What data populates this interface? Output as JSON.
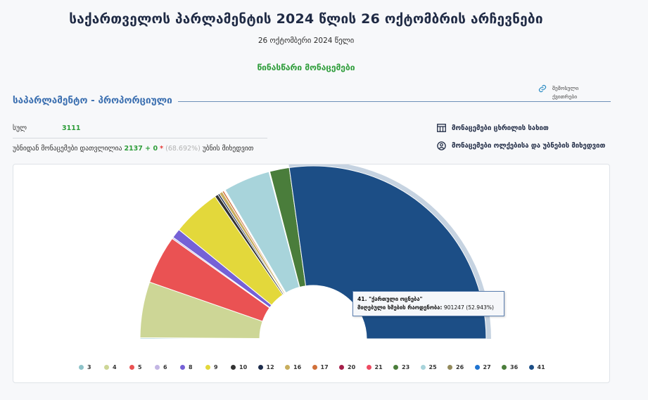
{
  "header": {
    "title": "საქართველოს პარლამენტის 2024 წლის 26 ოქტომბრის არჩევნები",
    "date": "26 ოქტომბერი 2024 წელი",
    "status": "წინასწარი მონაცემები"
  },
  "section": {
    "title": "საპარლამენტო - პროპორციული",
    "share_link": "შემოსული ქვითრები"
  },
  "stats": {
    "total_label": "სულ",
    "total_value": "3111",
    "counted_prefix": "უბნიდან მონაცემები დათვლილია",
    "counted_value": "2137 + 0",
    "counted_star": "*",
    "counted_percent": "(68.692%)",
    "counted_suffix": "უბნის მიხედვით"
  },
  "side_links": {
    "table_view": "მონაცემები ცხრილის სახით",
    "by_district": "მონაცემები ოლქებისა და უბნების მიხედვით"
  },
  "tooltip": {
    "title": "41. \"ქართული ოცნება\"",
    "label": "მიღებული ხმების რაოდენობა:",
    "value": "901247 (52.943%)"
  },
  "chart_data": {
    "type": "pie",
    "subtype": "semi-donut",
    "highlighted": "41",
    "slices": [
      {
        "name": "3",
        "percent": 0.2,
        "color": "#8ec3c9"
      },
      {
        "name": "4",
        "percent": 10.16,
        "color": "#cdd696"
      },
      {
        "name": "5",
        "percent": 8.81,
        "color": "#ea5253"
      },
      {
        "name": "6",
        "percent": 0.27,
        "color": "#c3b6e4"
      },
      {
        "name": "8",
        "percent": 1.73,
        "color": "#7561d6"
      },
      {
        "name": "9",
        "percent": 8.81,
        "color": "#e3d83b"
      },
      {
        "name": "10",
        "percent": 0.62,
        "color": "#333333"
      },
      {
        "name": "12",
        "percent": 0.32,
        "color": "#1d2c4c"
      },
      {
        "name": "16",
        "percent": 0.62,
        "color": "#c8ae5e"
      },
      {
        "name": "17",
        "percent": 0.32,
        "color": "#d0703a"
      },
      {
        "name": "20",
        "percent": 0.1,
        "color": "#a51f4a"
      },
      {
        "name": "21",
        "percent": 0.1,
        "color": "#ee4a61"
      },
      {
        "name": "23",
        "percent": 0.1,
        "color": "#4a7d3b"
      },
      {
        "name": "25",
        "percent": 8.5,
        "color": "#a8d4db"
      },
      {
        "name": "26",
        "percent": 0.1,
        "color": "#938a5b"
      },
      {
        "name": "27",
        "percent": 0.05,
        "color": "#1f74d1"
      },
      {
        "name": "36",
        "percent": 3.56,
        "color": "#4a7d3b"
      },
      {
        "name": "41",
        "percent": 52.943,
        "color": "#1c4e86"
      }
    ]
  }
}
